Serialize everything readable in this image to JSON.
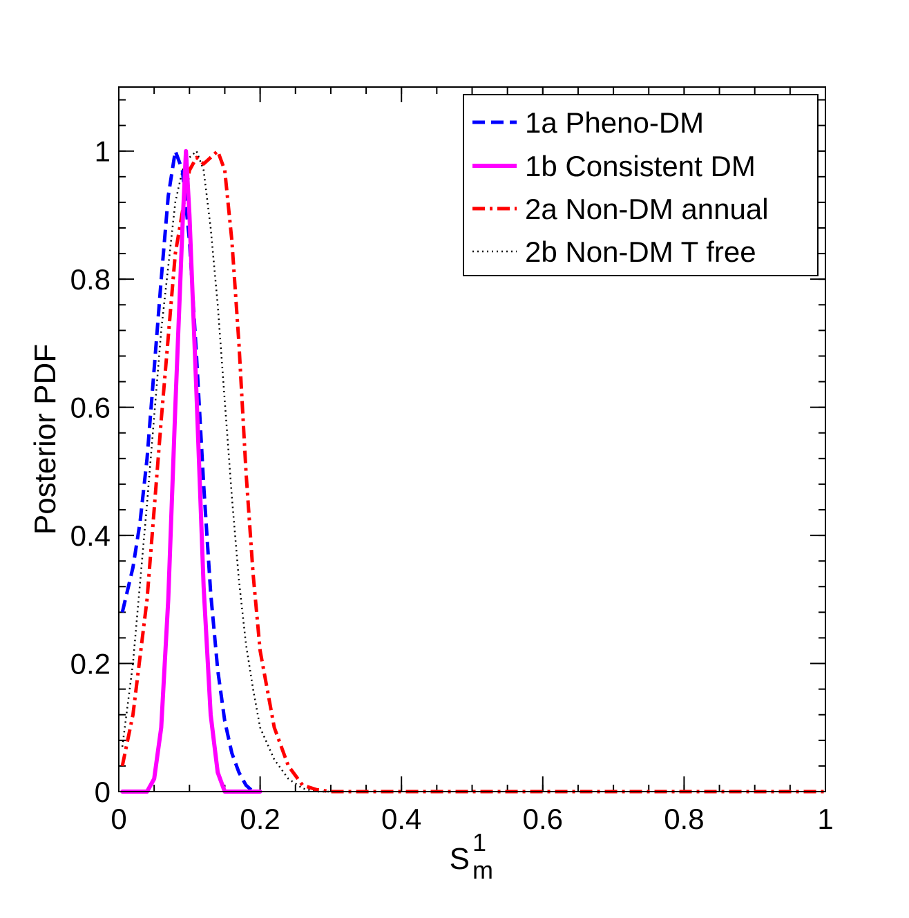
{
  "chart_data": {
    "type": "line",
    "title": "",
    "xlabel": {
      "main": "S",
      "superscript": "1",
      "subscript": "m"
    },
    "ylabel": "Posterior PDF",
    "xlim": [
      0,
      1
    ],
    "ylim": [
      0,
      1.1
    ],
    "xticks": [
      {
        "value": 0,
        "label": "0"
      },
      {
        "value": 0.2,
        "label": "0.2"
      },
      {
        "value": 0.4,
        "label": "0.4"
      },
      {
        "value": 0.6,
        "label": "0.6"
      },
      {
        "value": 0.8,
        "label": "0.8"
      },
      {
        "value": 1,
        "label": "1"
      }
    ],
    "yticks": [
      {
        "value": 0,
        "label": "0"
      },
      {
        "value": 0.2,
        "label": "0.2"
      },
      {
        "value": 0.4,
        "label": "0.4"
      },
      {
        "value": 0.6,
        "label": "0.6"
      },
      {
        "value": 0.8,
        "label": "0.8"
      },
      {
        "value": 1,
        "label": "1"
      }
    ],
    "x_minor_step": 0.05,
    "y_minor_step": 0.04,
    "grid": false,
    "legend_position": "top-right",
    "series": [
      {
        "name": "1a Pheno-DM",
        "color": "#0000ff",
        "style": "dashed",
        "x": [
          0.005,
          0.02,
          0.03,
          0.04,
          0.05,
          0.06,
          0.07,
          0.08,
          0.09,
          0.1,
          0.11,
          0.12,
          0.13,
          0.14,
          0.15,
          0.16,
          0.17,
          0.18,
          0.19
        ],
        "y": [
          0.28,
          0.35,
          0.42,
          0.52,
          0.66,
          0.8,
          0.93,
          1.0,
          0.97,
          0.86,
          0.68,
          0.48,
          0.31,
          0.19,
          0.11,
          0.06,
          0.03,
          0.01,
          0.0
        ]
      },
      {
        "name": "1b Consistent DM",
        "color": "#ff00ff",
        "style": "solid",
        "x": [
          0.005,
          0.04,
          0.05,
          0.06,
          0.07,
          0.08,
          0.09,
          0.095,
          0.1,
          0.11,
          0.12,
          0.13,
          0.14,
          0.15,
          0.2
        ],
        "y": [
          0.0,
          0.0,
          0.02,
          0.1,
          0.3,
          0.6,
          0.88,
          1.0,
          0.9,
          0.62,
          0.32,
          0.12,
          0.03,
          0.0,
          0.0
        ]
      },
      {
        "name": "2a Non-DM annual",
        "color": "#ff0000",
        "style": "dashdot",
        "x": [
          0.005,
          0.02,
          0.04,
          0.06,
          0.08,
          0.1,
          0.11,
          0.12,
          0.13,
          0.14,
          0.15,
          0.16,
          0.17,
          0.18,
          0.19,
          0.2,
          0.22,
          0.24,
          0.26,
          0.28,
          0.3,
          0.5,
          0.8,
          1.0
        ],
        "y": [
          0.04,
          0.12,
          0.3,
          0.58,
          0.84,
          0.97,
          0.99,
          0.98,
          0.99,
          1.0,
          0.97,
          0.86,
          0.7,
          0.5,
          0.34,
          0.22,
          0.1,
          0.04,
          0.01,
          0.003,
          0.0,
          0.0,
          0.0,
          0.0
        ]
      },
      {
        "name": "2b Non-DM T free",
        "color": "#000000",
        "style": "dotted",
        "x": [
          0.005,
          0.02,
          0.04,
          0.06,
          0.08,
          0.09,
          0.1,
          0.11,
          0.12,
          0.13,
          0.14,
          0.15,
          0.16,
          0.17,
          0.18,
          0.19,
          0.2,
          0.22,
          0.24,
          0.26,
          0.28,
          0.3
        ],
        "y": [
          0.07,
          0.2,
          0.45,
          0.72,
          0.92,
          0.97,
          0.99,
          1.0,
          0.97,
          0.88,
          0.76,
          0.61,
          0.46,
          0.33,
          0.23,
          0.16,
          0.1,
          0.05,
          0.02,
          0.005,
          0.0,
          0.0
        ]
      }
    ]
  }
}
